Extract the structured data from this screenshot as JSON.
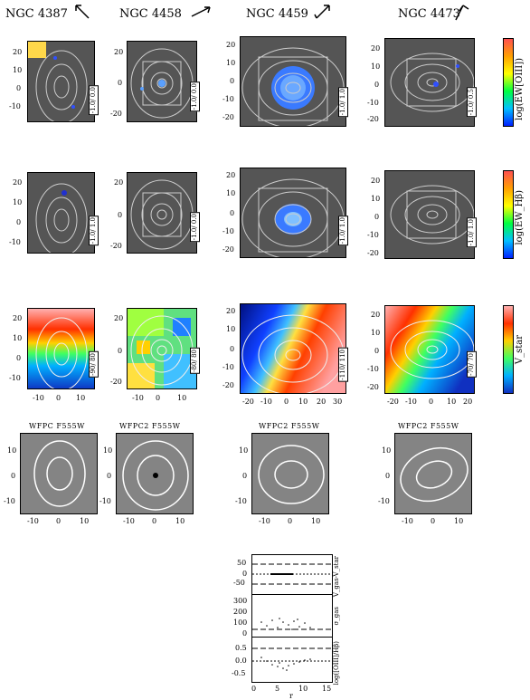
{
  "galaxies": [
    "NGC 4387",
    "NGC 4458",
    "NGC 4459",
    "NGC 4473"
  ],
  "colorbars": {
    "row1": "log(EW[OIII])",
    "row2": "log(EW_Hβ)",
    "row3": "V_star"
  },
  "ranges": {
    "row1": [
      "-1.0/ 0.0",
      "-1.0/ 0.0",
      "-1.0/ 1.0",
      "-1.0/ 0.5"
    ],
    "row2": [
      "-1.0/ 1.0",
      "-1.0/ 0.0",
      "-1.0/ 1.0",
      "-1.0/ 1.0"
    ],
    "row3": [
      "-90/ 80",
      "-80/ 80",
      "-110/ 110",
      "-70/ 70"
    ]
  },
  "axis_ticks": {
    "ngc4387_y": [
      "20",
      "10",
      "0",
      "-10"
    ],
    "ngc4458_y": [
      "20",
      "0",
      "-20"
    ],
    "ngc4459_y": [
      "20",
      "10",
      "0",
      "-10",
      "-20"
    ],
    "ngc4473_y": [
      "20",
      "10",
      "0",
      "-10",
      "-20"
    ],
    "ngc4387_x": [
      "-10",
      "0",
      "10"
    ],
    "ngc4458_x": [
      "-10",
      "0",
      "10"
    ],
    "ngc4459_x": [
      "-20",
      "-10",
      "0",
      "10",
      "20",
      "30"
    ],
    "ngc4473_x": [
      "-20",
      "-10",
      "0",
      "10",
      "20"
    ]
  },
  "wfpc_titles": [
    "WFPC F555W",
    "WFPC2 F555W",
    "WFPC2 F555W",
    "WFPC2 F555W"
  ],
  "wfpc_ticks": {
    "y": [
      "10",
      "0",
      "-10"
    ],
    "x": [
      "-10",
      "0",
      "10"
    ]
  },
  "profile": {
    "panel1_y": [
      "50",
      "0",
      "-50"
    ],
    "panel1_label": "V_gas-V_star",
    "panel2_y": [
      "300",
      "200",
      "100",
      "0"
    ],
    "panel2_label": "σ_gas",
    "panel3_y": [
      "0.5",
      "0.0",
      "-0.5"
    ],
    "panel3_label": "log([OIII]/Hβ)",
    "x_ticks": [
      "0",
      "5",
      "10",
      "15"
    ],
    "xlabel": "r"
  }
}
